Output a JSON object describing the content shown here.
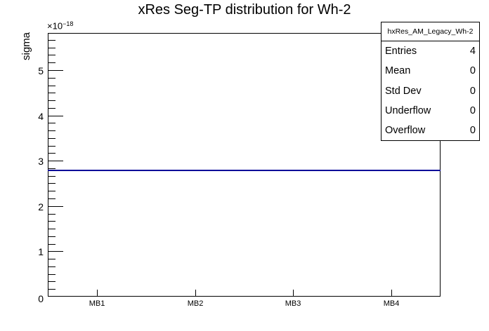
{
  "title": "xRes Seg-TP distribution for Wh-2",
  "y_axis": {
    "label": "sigma",
    "exponent_mantissa": "×10",
    "exponent_power": "−18",
    "majors": [
      0,
      1,
      2,
      3,
      4,
      5
    ],
    "max_e18": 5.82,
    "minor_divisions": 6
  },
  "x_axis": {
    "categories": [
      "MB1",
      "MB2",
      "MB3",
      "MB4"
    ]
  },
  "stats_box": {
    "title": "hxRes_AM_Legacy_Wh-2",
    "rows": [
      {
        "label": "Entries",
        "value": "4"
      },
      {
        "label": "Mean",
        "value": "0"
      },
      {
        "label": "Std Dev",
        "value": "0"
      },
      {
        "label": "Underflow",
        "value": "0"
      },
      {
        "label": "Overflow",
        "value": "0"
      }
    ]
  },
  "chart_data": {
    "type": "line",
    "title": "xRes Seg-TP distribution for Wh-2",
    "categories": [
      "MB1",
      "MB2",
      "MB3",
      "MB4"
    ],
    "values": [
      2.78e-18,
      2.78e-18,
      2.78e-18,
      2.78e-18
    ],
    "xlabel": "",
    "ylabel": "sigma",
    "ylim": [
      0,
      5.82e-18
    ],
    "y_major_ticks_e18": [
      0,
      1,
      2,
      3,
      4,
      5
    ],
    "y_axis_multiplier_label": "×10⁻¹⁸",
    "grid": false,
    "legend_position": "none",
    "stats": {
      "entries": 4,
      "mean": 0,
      "std_dev": 0,
      "underflow": 0,
      "overflow": 0
    }
  },
  "colors": {
    "histogram_line": "#000099",
    "axis": "#000000",
    "background": "#ffffff"
  }
}
